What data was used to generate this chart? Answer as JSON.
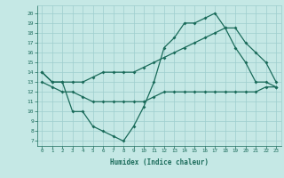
{
  "xlabel": "Humidex (Indice chaleur)",
  "bg_color": "#c5e8e5",
  "grid_color": "#9ecece",
  "line_color": "#1a6b5a",
  "xlim": [
    -0.5,
    23.5
  ],
  "ylim": [
    6.5,
    20.8
  ],
  "yticks": [
    7,
    8,
    9,
    10,
    11,
    12,
    13,
    14,
    15,
    16,
    17,
    18,
    19,
    20
  ],
  "xticks": [
    0,
    1,
    2,
    3,
    4,
    5,
    6,
    7,
    8,
    9,
    10,
    11,
    12,
    13,
    14,
    15,
    16,
    17,
    18,
    19,
    20,
    21,
    22,
    23
  ],
  "line1_x": [
    0,
    1,
    2,
    3,
    4,
    5,
    6,
    7,
    8,
    9,
    10,
    11,
    12,
    13,
    14,
    15,
    16,
    17,
    18,
    19,
    20,
    21,
    22,
    23
  ],
  "line1_y": [
    14,
    13,
    13,
    13,
    13,
    13.5,
    14,
    14,
    14,
    14,
    14.5,
    15,
    15.5,
    16,
    16.5,
    17,
    17.5,
    18,
    18.5,
    18.5,
    17,
    16,
    15,
    13
  ],
  "line2_x": [
    0,
    1,
    2,
    3,
    4,
    5,
    6,
    7,
    8,
    9,
    10,
    11,
    12,
    13,
    14,
    15,
    16,
    17,
    18,
    19,
    20,
    21,
    22,
    23
  ],
  "line2_y": [
    14,
    13,
    13,
    10,
    10,
    8.5,
    8,
    7.5,
    7,
    8.5,
    10.5,
    13,
    16.5,
    17.5,
    19,
    19,
    19.5,
    20,
    18.5,
    16.5,
    15,
    13,
    13,
    12.5
  ],
  "line3_x": [
    0,
    1,
    2,
    3,
    4,
    5,
    6,
    7,
    8,
    9,
    10,
    11,
    12,
    13,
    14,
    15,
    16,
    17,
    18,
    19,
    20,
    21,
    22,
    23
  ],
  "line3_y": [
    13,
    12.5,
    12,
    12,
    11.5,
    11,
    11,
    11,
    11,
    11,
    11,
    11.5,
    12,
    12,
    12,
    12,
    12,
    12,
    12,
    12,
    12,
    12,
    12.5,
    12.5
  ]
}
